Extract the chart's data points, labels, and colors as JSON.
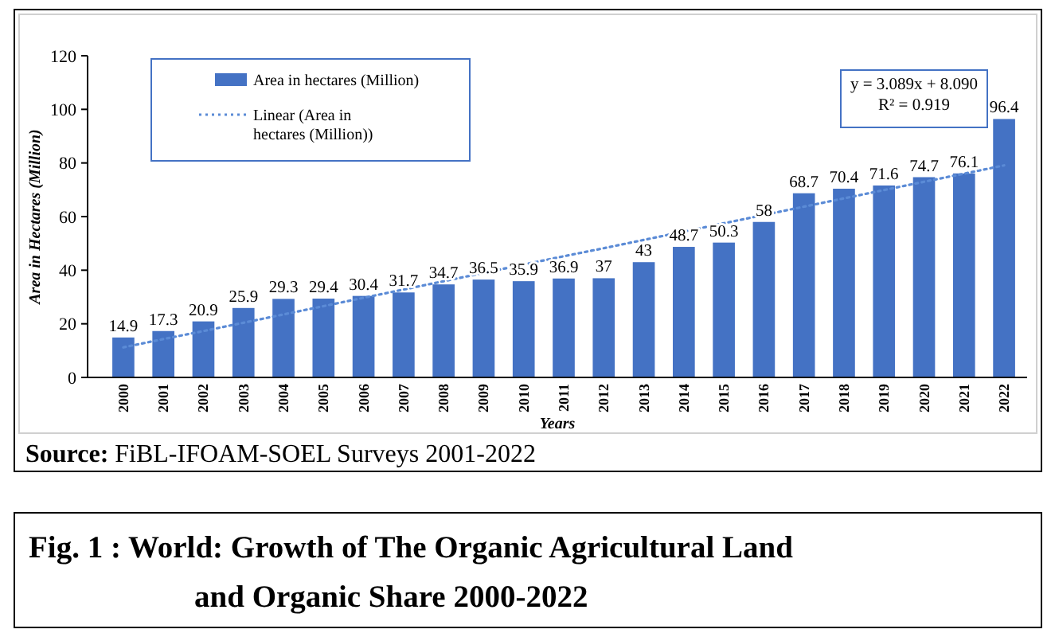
{
  "chart_data": {
    "type": "bar",
    "title": "Fig. 1 :   World: Growth of The Organic Agricultural Land and Organic Share 2000-2022",
    "xlabel": "Years",
    "ylabel": "Area in Hectares (Million)",
    "categories": [
      "2000",
      "2001",
      "2002",
      "2003",
      "2004",
      "2005",
      "2006",
      "2007",
      "2008",
      "2009",
      "2010",
      "2011",
      "2012",
      "2013",
      "2014",
      "2015",
      "2016",
      "2017",
      "2018",
      "2019",
      "2020",
      "2021",
      "2022"
    ],
    "series": [
      {
        "name": "Area in hectares (Million)",
        "color": "#4472c4",
        "values": [
          14.9,
          17.3,
          20.9,
          25.9,
          29.3,
          29.4,
          30.4,
          31.7,
          34.7,
          36.5,
          35.9,
          36.9,
          37,
          43,
          48.7,
          50.3,
          58,
          68.7,
          70.4,
          71.6,
          74.7,
          76.1,
          96.4
        ],
        "value_labels": [
          "14.9",
          "17.3",
          "20.9",
          "25.9",
          "29.3",
          "29.4",
          "30.4",
          "31.7",
          "34.7",
          "36.5",
          "35.9",
          "36.9",
          "37",
          "43",
          "48.7",
          "50.3",
          "58",
          "68.7",
          "70.4",
          "71.6",
          "74.7",
          "76.1",
          "96.4"
        ]
      },
      {
        "name": "Linear (Area in hectares (Million))",
        "type": "line",
        "color": "#5b8bd6",
        "line_style": "dotted",
        "values": [
          11.2,
          14.3,
          17.3,
          20.4,
          23.5,
          26.6,
          29.7,
          32.8,
          35.9,
          39.0,
          42.1,
          45.2,
          48.2,
          51.3,
          54.4,
          57.5,
          60.6,
          63.7,
          66.8,
          69.9,
          73.0,
          76.0,
          79.1
        ]
      }
    ],
    "ylim": [
      0,
      120
    ],
    "yticks": [
      0,
      20,
      40,
      60,
      80,
      100,
      120
    ],
    "legend": "top left",
    "annotations": [
      "y = 3.089x + 8.090",
      "R² = 0.919",
      "Source: FiBL-IFOAM-SOEL Surveys 2001-2022"
    ]
  }
}
